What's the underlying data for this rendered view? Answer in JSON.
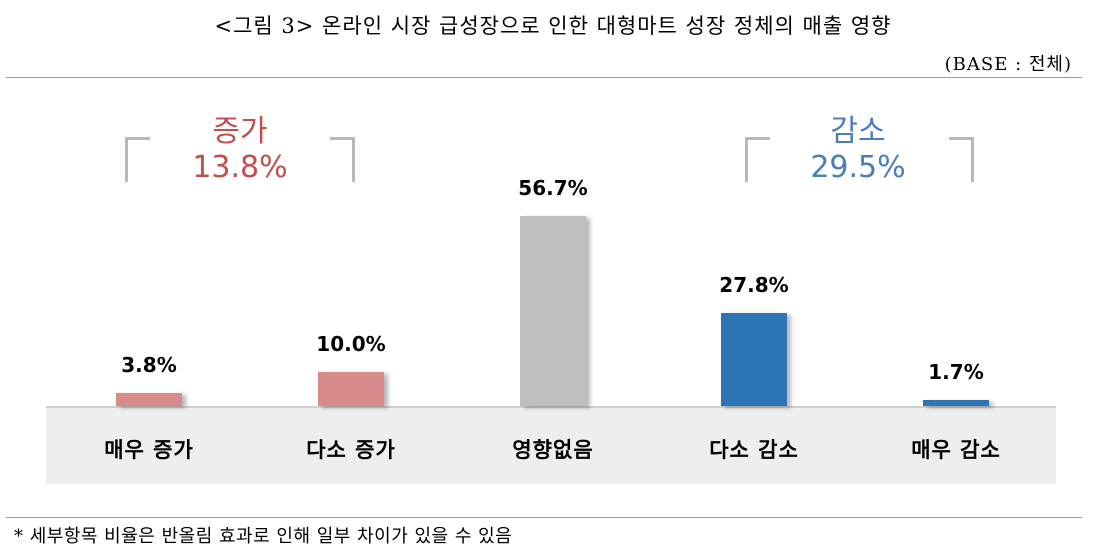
{
  "header": {
    "title": "<그림 3> 온라인 시장 급성장으로 인한 대형마트 성장 정체의 매출 영향",
    "base_note": "(BASE : 전체)"
  },
  "groups": {
    "increase": {
      "label": "증가",
      "value": "13.8%",
      "color": "#c0504d"
    },
    "decrease": {
      "label": "감소",
      "value": "29.5%",
      "color": "#4a7ebb"
    }
  },
  "footnote": "* 세부항목 비율은 반올림 효과로 인해 일부 차이가 있을 수 있음",
  "chart_data": {
    "type": "bar",
    "categories": [
      "매우 증가",
      "다소 증가",
      "영향없음",
      "다소 감소",
      "매우 감소"
    ],
    "values": [
      3.8,
      10.0,
      56.7,
      27.8,
      1.7
    ],
    "value_labels": [
      "3.8%",
      "10.0%",
      "56.7%",
      "27.8%",
      "1.7%"
    ],
    "colors": [
      "#d98a8a",
      "#d98a8a",
      "#bfbfbf",
      "#2e75b6",
      "#2e75b6"
    ],
    "ylim": [
      0,
      60
    ],
    "grid": false,
    "legend": "none"
  }
}
